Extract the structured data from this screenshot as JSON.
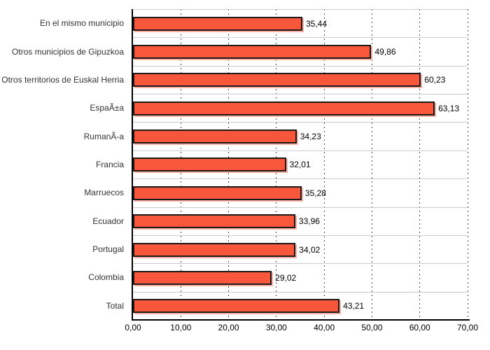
{
  "chart_data": {
    "type": "bar",
    "orientation": "horizontal",
    "title": "",
    "xlabel": "",
    "ylabel": "",
    "categories": [
      "En el mismo municipio",
      "Otros municipios de Gipuzkoa",
      "Otros territorios de Euskal Herria",
      "EspaÃ±a",
      "RumanÃ-a",
      "Francia",
      "Marruecos",
      "Ecuador",
      "Portugal",
      "Colombia",
      "Total"
    ],
    "values": [
      35.44,
      49.86,
      60.23,
      63.13,
      34.23,
      32.01,
      35.28,
      33.96,
      34.02,
      29.02,
      43.21
    ],
    "value_labels": [
      "35,44",
      "49,86",
      "60,23",
      "63,13",
      "34,23",
      "32,01",
      "35,28",
      "33,96",
      "34,02",
      "29,02",
      "43,21"
    ],
    "xlim": [
      0,
      70
    ],
    "x_tick_values": [
      0,
      10,
      20,
      30,
      40,
      50,
      60,
      70
    ],
    "x_tick_labels": [
      "0,00",
      "10,00",
      "20,00",
      "30,00",
      "40,00",
      "50,00",
      "60,00",
      "70,00"
    ],
    "grid": "vertical dotted major gridlines; horizontal category separator lines",
    "legend": "none",
    "colors": {
      "bar_fill": "#f9573b",
      "bar_border": "#1a1a1a",
      "bar_shadow": "#f8b0a1",
      "vertical_gridline": "#4a4a4a",
      "row_separator": "#cccccc",
      "axis": "#000000",
      "label_text": "#333333",
      "value_text": "#000000",
      "background": "#ffffff"
    }
  }
}
